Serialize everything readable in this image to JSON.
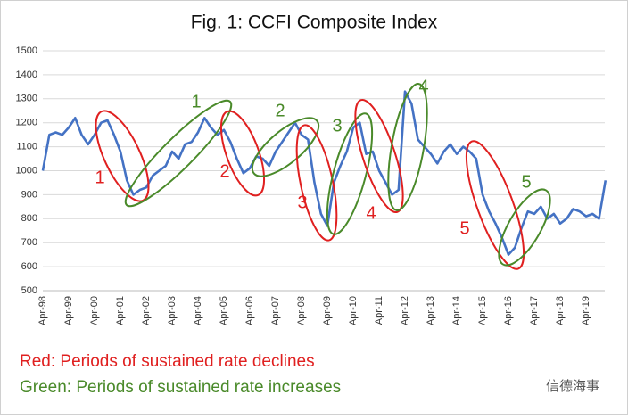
{
  "chart_data": {
    "type": "line",
    "title": "Fig. 1: CCFI Composite Index",
    "categories": [
      "Apr-98",
      null,
      null,
      null,
      "Apr-99",
      null,
      null,
      null,
      "Apr-00",
      null,
      null,
      null,
      "Apr-01",
      null,
      null,
      null,
      "Apr-02",
      null,
      null,
      null,
      "Apr-03",
      null,
      null,
      null,
      "Apr-04",
      null,
      null,
      null,
      "Apr-05",
      null,
      null,
      null,
      "Apr-06",
      null,
      null,
      null,
      "Apr-07",
      null,
      null,
      null,
      "Apr-08",
      null,
      null,
      null,
      "Apr-09",
      null,
      null,
      null,
      "Apr-10",
      null,
      null,
      null,
      "Apr-11",
      null,
      null,
      null,
      "Apr-12",
      null,
      null,
      null,
      "Apr-13",
      null,
      null,
      null,
      "Apr-14",
      null,
      null,
      null,
      "Apr-15",
      null,
      null,
      null,
      "Apr-16",
      null,
      null,
      null,
      "Apr-17",
      null,
      null,
      null,
      "Apr-18",
      null,
      null,
      null,
      "Apr-19",
      null,
      null,
      null
    ],
    "series": [
      {
        "name": "CCFI Composite Index",
        "color": "#4472c4",
        "values": [
          1000,
          1150,
          1160,
          1150,
          1180,
          1220,
          1150,
          1110,
          1150,
          1200,
          1210,
          1150,
          1080,
          960,
          900,
          920,
          930,
          980,
          1000,
          1020,
          1080,
          1050,
          1110,
          1120,
          1160,
          1220,
          1180,
          1150,
          1170,
          1120,
          1050,
          990,
          1010,
          1060,
          1050,
          1020,
          1080,
          1120,
          1160,
          1200,
          1150,
          1130,
          950,
          820,
          770,
          950,
          1020,
          1080,
          1180,
          1200,
          1070,
          1080,
          1000,
          950,
          900,
          920,
          1330,
          1280,
          1130,
          1100,
          1070,
          1030,
          1080,
          1110,
          1070,
          1100,
          1080,
          1050,
          900,
          830,
          780,
          720,
          650,
          680,
          760,
          830,
          820,
          850,
          800,
          820,
          780,
          800,
          840,
          830,
          810,
          820,
          800,
          960
        ]
      }
    ],
    "ylim": [
      500,
      1500
    ],
    "yticks": [
      500,
      600,
      700,
      800,
      900,
      1000,
      1100,
      1200,
      1300,
      1400,
      1500
    ],
    "grid": true,
    "annotations": [
      {
        "text": "1",
        "color": "#e02020"
      },
      {
        "text": "1",
        "color": "#4a8a2a"
      },
      {
        "text": "2",
        "color": "#e02020"
      },
      {
        "text": "2",
        "color": "#4a8a2a"
      },
      {
        "text": "3",
        "color": "#e02020"
      },
      {
        "text": "3",
        "color": "#4a8a2a"
      },
      {
        "text": "4",
        "color": "#e02020"
      },
      {
        "text": "4",
        "color": "#4a8a2a"
      },
      {
        "text": "5",
        "color": "#e02020"
      },
      {
        "text": "5",
        "color": "#4a8a2a"
      }
    ],
    "notes": [
      {
        "text": "Red: Periods of sustained rate declines",
        "color": "#e02020"
      },
      {
        "text": "Green: Periods of sustained rate increases",
        "color": "#4a8a2a"
      }
    ],
    "watermark": "信德海事"
  }
}
